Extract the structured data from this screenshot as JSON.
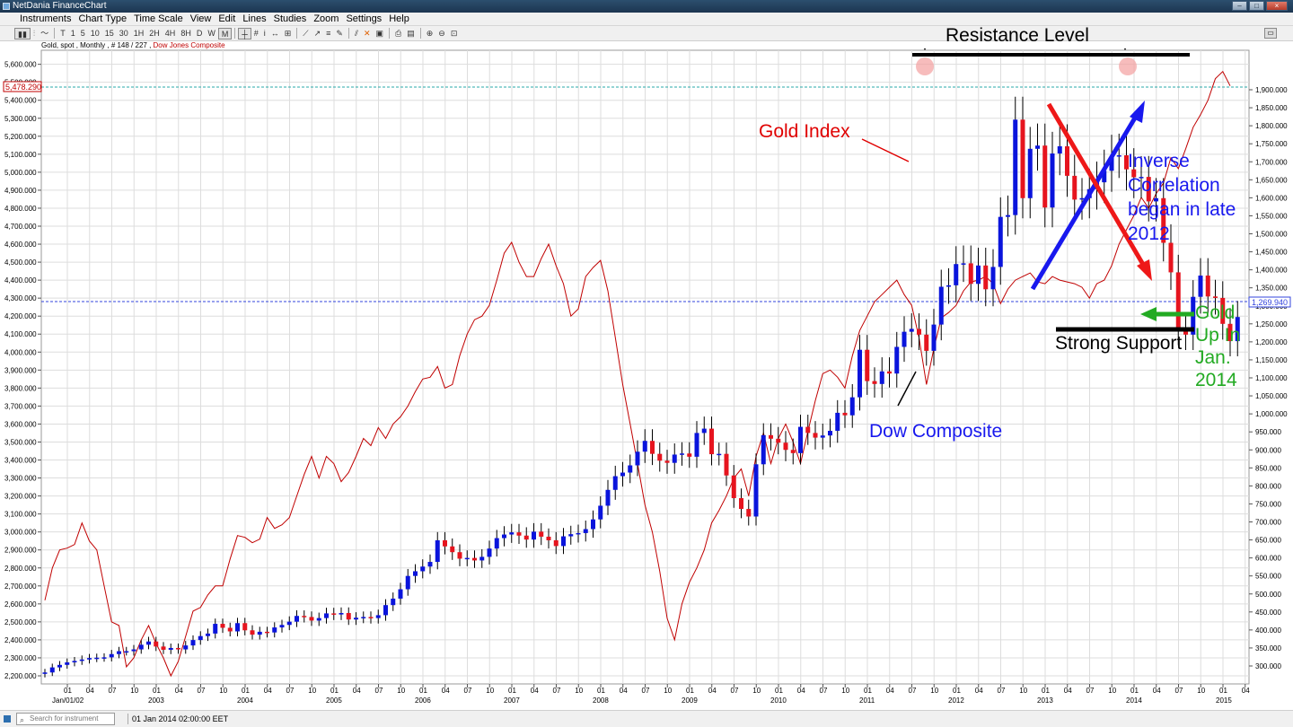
{
  "window": {
    "title": "NetDania FinanceChart"
  },
  "menu": [
    "Instruments",
    "Chart Type",
    "Time Scale",
    "View",
    "Edit",
    "Lines",
    "Studies",
    "Zoom",
    "Settings",
    "Help"
  ],
  "toolbar": {
    "timeframes": [
      "T",
      "1",
      "5",
      "10",
      "15",
      "30",
      "1H",
      "2H",
      "4H",
      "8H",
      "D",
      "W",
      "M"
    ],
    "active_timeframe": "M"
  },
  "instrument": {
    "info": "Gold, spot , Monthly , # 148 / 227 ,",
    "overlay": "Dow Jones Composite"
  },
  "status": {
    "search_placeholder": "Search for instrument",
    "date": "01 Jan 2014 02:00:00 EET"
  },
  "annotations": {
    "resistance": "Resistance Level",
    "gold_index": "Gold Index",
    "inverse_lines": [
      "Inverse",
      "Correlation",
      "began in late",
      "2012"
    ],
    "support": "Strong Support",
    "gold_up_lines": [
      "Gold",
      "Up In",
      "Jan.",
      "2014"
    ],
    "dow": "Dow Composite"
  },
  "colors": {
    "up": "#0a14dc",
    "down": "#e6141e",
    "dow_line": "#c00000",
    "grid": "#dddddd",
    "gold_up_text": "#22aa22"
  },
  "chart_data": {
    "type": "candlestick",
    "left_axis": {
      "min": 2200000,
      "max": 5660000,
      "ticks": [
        "5,600.000",
        "5,500.000",
        "5,400.000",
        "5,300.000",
        "5,200.000",
        "5,100.000",
        "5,000.000",
        "4,900.000",
        "4,800.000",
        "4,700.000",
        "4,600.000",
        "4,500.000",
        "4,400.000",
        "4,300.000",
        "4,200.000",
        "4,100.000",
        "4,000.000",
        "3,900.000",
        "3,800.000",
        "3,700.000",
        "3,600.000",
        "3,500.000",
        "3,400.000",
        "3,300.000",
        "3,200.000",
        "3,100.000",
        "3,000.000",
        "2,900.000",
        "2,800.000",
        "2,700.000",
        "2,600.000",
        "2,500.000",
        "2,400.000",
        "2,300.000",
        "2,200.000"
      ]
    },
    "right_axis": {
      "min": 260,
      "max": 1920,
      "ticks": [
        "1,900.000",
        "1,850.000",
        "1,800.000",
        "1,750.000",
        "1,700.000",
        "1,650.000",
        "1,600.000",
        "1,550.000",
        "1,500.000",
        "1,450.000",
        "1,400.000",
        "1,350.000",
        "1,300.000",
        "1,250.000",
        "1,200.000",
        "1,150.000",
        "1,100.000",
        "1,050.000",
        "1,000.000",
        "950.000",
        "900.000",
        "850.000",
        "800.000",
        "750.000",
        "700.000",
        "650.000",
        "600.000",
        "550.000",
        "500.000",
        "450.000",
        "400.000",
        "350.000",
        "300.000"
      ]
    },
    "x_ticks": [
      "01",
      "04",
      "07",
      "10",
      "01",
      "04",
      "07",
      "10",
      "01",
      "04",
      "07",
      "10",
      "01",
      "04",
      "07",
      "10",
      "01",
      "04",
      "07",
      "10",
      "01",
      "04",
      "07",
      "10",
      "01",
      "04",
      "07",
      "10",
      "01",
      "04",
      "07",
      "10",
      "01",
      "04",
      "07",
      "10",
      "01",
      "04",
      "07",
      "10",
      "01",
      "04",
      "07",
      "10",
      "01",
      "04",
      "07",
      "10",
      "01",
      "04",
      "07",
      "10",
      "01",
      "04",
      "07",
      "10",
      "01",
      "04",
      "07",
      "10"
    ],
    "x_years": [
      "Jan/01/02",
      "2003",
      "2004",
      "2005",
      "2006",
      "2007",
      "2008",
      "2009",
      "2010",
      "2011",
      "2012",
      "2013",
      "2014",
      "2015"
    ],
    "gold_last": "1,269.940",
    "dow_last": "5,478.290",
    "gold_close": [
      282,
      296,
      303,
      310,
      314,
      318,
      322,
      323,
      324,
      333,
      341,
      341,
      346,
      359,
      368,
      354,
      345,
      350,
      346,
      357,
      372,
      383,
      390,
      417,
      406,
      396,
      419,
      399,
      387,
      395,
      393,
      407,
      414,
      423,
      439,
      436,
      426,
      433,
      446,
      443,
      447,
      429,
      434,
      436,
      433,
      441,
      469,
      487,
      513,
      550,
      563,
      576,
      589,
      649,
      632,
      616,
      598,
      600,
      593,
      603,
      626,
      655,
      665,
      671,
      662,
      651,
      673,
      659,
      649,
      633,
      660,
      666,
      669,
      680,
      707,
      745,
      789,
      827,
      837,
      857,
      895,
      925,
      889,
      870,
      864,
      887,
      890,
      881,
      947,
      959,
      888,
      889,
      829,
      766,
      736,
      715,
      860,
      941,
      931,
      920,
      900,
      891,
      964,
      947,
      934,
      940,
      953,
      1003,
      996,
      1046,
      1178,
      1091,
      1083,
      1118,
      1112,
      1186,
      1228,
      1236,
      1220,
      1175,
      1248,
      1353,
      1357,
      1416,
      1418,
      1361,
      1412,
      1346,
      1408,
      1547,
      1552,
      1817,
      1599,
      1736,
      1745,
      1573,
      1723,
      1743,
      1661,
      1595,
      1599,
      1624,
      1643,
      1675,
      1715,
      1718,
      1679,
      1657,
      1658,
      1590,
      1599,
      1475,
      1393,
      1234,
      1220,
      1325,
      1384,
      1326,
      1322,
      1250,
      1202,
      1269
    ]
  }
}
